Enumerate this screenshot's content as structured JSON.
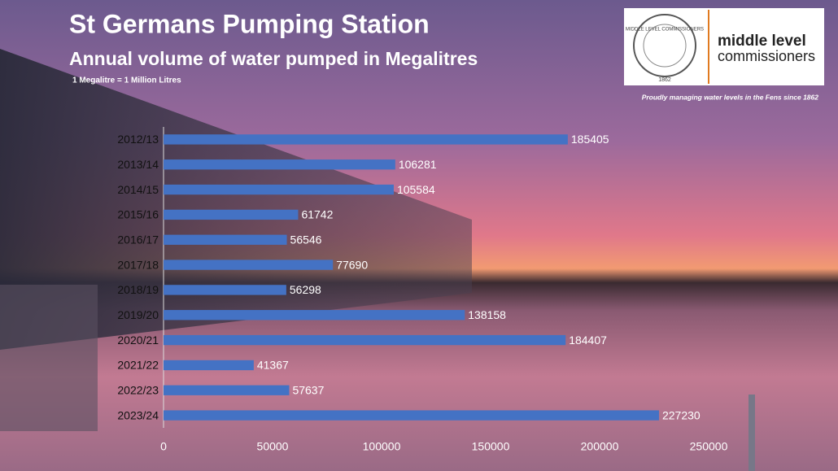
{
  "chart_data": {
    "type": "bar",
    "orientation": "horizontal",
    "title": "St Germans Pumping Station",
    "subtitle": "Annual volume of water pumped in Megalitres",
    "note": "1 Megalitre = 1 Million Litres",
    "categories": [
      "2012/13",
      "2013/14",
      "2014/15",
      "2015/16",
      "2016/17",
      "2017/18",
      "2018/19",
      "2019/20",
      "2020/21",
      "2021/22",
      "2022/23",
      "2023/24"
    ],
    "values": [
      185405,
      106281,
      105584,
      61742,
      56546,
      77690,
      56298,
      138158,
      184407,
      41367,
      57637,
      227230
    ],
    "color": "#4472c4",
    "xlim": [
      0,
      250000
    ],
    "xticks": [
      0,
      50000,
      100000,
      150000,
      200000,
      250000
    ],
    "grid": false
  },
  "logo": {
    "seal_text": "MIDDLE LEVEL COMMISSIONERS",
    "seal_year": "1862",
    "name_line1": "middle level",
    "name_line2": "commissioners"
  },
  "tagline": "Proudly managing water levels in the Fens since 1862"
}
